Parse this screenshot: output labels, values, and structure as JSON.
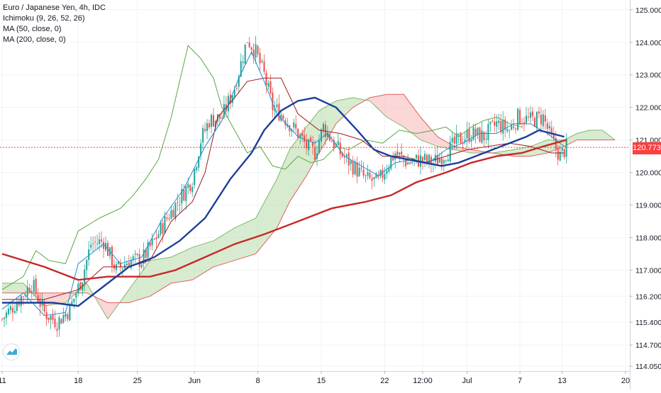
{
  "legend": {
    "title": "Euro / Japanese Yen, 4h, IDC",
    "ichimoku": "Ichimoku (9, 26, 52, 26)",
    "ma50": "MA (50, close, 0)",
    "ma200": "MA (200, close, 0)"
  },
  "colors": {
    "candle_up": "#26a69a",
    "candle_down": "#ef5350",
    "ma50": "#1a3f9a",
    "ma200": "#c62828",
    "conversion": "#1c8fd6",
    "base": "#9e1c1c",
    "lagging": "#58a842",
    "span_a": "#7fb96e",
    "span_b": "#e06060",
    "cloud_bull": "#b7dba8",
    "cloud_bear": "#f7b4b4",
    "last_price_line": "#ff3e3e"
  },
  "chart_data": {
    "type": "candlestick",
    "symbol": "Euro / Japanese Yen",
    "timeframe": "4h",
    "source": "IDC",
    "last_price": "120.773",
    "y_range": [
      113.9,
      125.3
    ],
    "y_ticks": [
      "125.000",
      "124.000",
      "123.000",
      "122.000",
      "121.000",
      "120.000",
      "119.000",
      "118.000",
      "117.000",
      "116.200",
      "115.400",
      "114.700",
      "114.050"
    ],
    "x_labels": [
      "11",
      "18",
      "25",
      "Jun",
      "8",
      "15",
      "22",
      "12:00",
      "Jul",
      "7",
      "13",
      "20"
    ],
    "x_label_index": [
      0,
      36,
      64,
      91,
      121,
      151,
      181,
      199,
      220,
      245,
      265,
      295
    ],
    "n_slots": 298,
    "candle_count": 268,
    "close_anchors": [
      [
        0,
        115.5
      ],
      [
        8,
        116.1
      ],
      [
        14,
        116.6
      ],
      [
        20,
        115.7
      ],
      [
        26,
        115.4
      ],
      [
        32,
        115.8
      ],
      [
        38,
        116.8
      ],
      [
        42,
        117.8
      ],
      [
        48,
        117.9
      ],
      [
        54,
        117.0
      ],
      [
        60,
        117.3
      ],
      [
        66,
        117.3
      ],
      [
        72,
        117.9
      ],
      [
        78,
        118.6
      ],
      [
        84,
        119.2
      ],
      [
        90,
        119.8
      ],
      [
        94,
        121.0
      ],
      [
        98,
        121.6
      ],
      [
        104,
        121.7
      ],
      [
        110,
        122.6
      ],
      [
        116,
        124.1
      ],
      [
        120,
        123.7
      ],
      [
        124,
        123.0
      ],
      [
        128,
        122.0
      ],
      [
        132,
        121.8
      ],
      [
        136,
        121.5
      ],
      [
        140,
        121.2
      ],
      [
        144,
        120.8
      ],
      [
        148,
        120.6
      ],
      [
        152,
        121.4
      ],
      [
        156,
        121.0
      ],
      [
        160,
        120.6
      ],
      [
        166,
        120.2
      ],
      [
        172,
        119.8
      ],
      [
        178,
        119.7
      ],
      [
        182,
        120.2
      ],
      [
        186,
        120.6
      ],
      [
        192,
        120.3
      ],
      [
        198,
        120.4
      ],
      [
        204,
        120.3
      ],
      [
        210,
        120.6
      ],
      [
        216,
        121.0
      ],
      [
        222,
        121.2
      ],
      [
        228,
        121.1
      ],
      [
        234,
        121.5
      ],
      [
        240,
        121.3
      ],
      [
        244,
        121.7
      ],
      [
        250,
        121.6
      ],
      [
        256,
        121.7
      ],
      [
        260,
        121.0
      ],
      [
        264,
        120.5
      ],
      [
        267,
        120.77
      ]
    ],
    "ma50": [
      [
        0,
        116.0
      ],
      [
        12,
        116.0
      ],
      [
        24,
        116.0
      ],
      [
        36,
        115.9
      ],
      [
        48,
        116.5
      ],
      [
        60,
        117.1
      ],
      [
        72,
        117.4
      ],
      [
        84,
        117.9
      ],
      [
        96,
        118.6
      ],
      [
        108,
        119.8
      ],
      [
        118,
        120.6
      ],
      [
        124,
        121.3
      ],
      [
        132,
        121.9
      ],
      [
        140,
        122.2
      ],
      [
        148,
        122.3
      ],
      [
        158,
        122.0
      ],
      [
        168,
        121.3
      ],
      [
        176,
        120.7
      ],
      [
        184,
        120.5
      ],
      [
        192,
        120.4
      ],
      [
        200,
        120.3
      ],
      [
        208,
        120.2
      ],
      [
        216,
        120.3
      ],
      [
        224,
        120.5
      ],
      [
        232,
        120.7
      ],
      [
        240,
        120.9
      ],
      [
        248,
        121.1
      ],
      [
        254,
        121.3
      ],
      [
        260,
        121.2
      ],
      [
        266,
        121.1
      ]
    ],
    "ma200": [
      [
        0,
        117.5
      ],
      [
        20,
        117.1
      ],
      [
        36,
        116.7
      ],
      [
        50,
        116.8
      ],
      [
        60,
        116.8
      ],
      [
        70,
        116.8
      ],
      [
        82,
        117.0
      ],
      [
        96,
        117.4
      ],
      [
        110,
        117.8
      ],
      [
        124,
        118.1
      ],
      [
        140,
        118.5
      ],
      [
        156,
        118.9
      ],
      [
        172,
        119.1
      ],
      [
        184,
        119.3
      ],
      [
        196,
        119.7
      ],
      [
        210,
        120.0
      ],
      [
        222,
        120.3
      ],
      [
        234,
        120.5
      ],
      [
        246,
        120.6
      ],
      [
        256,
        120.8
      ],
      [
        267,
        121.0
      ]
    ],
    "ichimoku": {
      "conversion": [
        [
          0,
          115.8
        ],
        [
          10,
          116.3
        ],
        [
          20,
          115.6
        ],
        [
          30,
          115.7
        ],
        [
          36,
          117.2
        ],
        [
          48,
          117.8
        ],
        [
          56,
          117.2
        ],
        [
          66,
          117.4
        ],
        [
          76,
          118.6
        ],
        [
          86,
          119.5
        ],
        [
          96,
          120.8
        ],
        [
          104,
          121.6
        ],
        [
          112,
          122.9
        ],
        [
          118,
          123.7
        ],
        [
          124,
          122.8
        ],
        [
          130,
          121.8
        ],
        [
          140,
          121.1
        ],
        [
          148,
          120.9
        ],
        [
          154,
          121.2
        ],
        [
          162,
          120.5
        ],
        [
          170,
          120.2
        ],
        [
          178,
          119.9
        ],
        [
          186,
          120.3
        ],
        [
          194,
          120.4
        ],
        [
          202,
          120.3
        ],
        [
          210,
          120.7
        ],
        [
          218,
          120.9
        ],
        [
          226,
          121.2
        ],
        [
          234,
          121.2
        ],
        [
          242,
          121.5
        ],
        [
          250,
          121.5
        ],
        [
          258,
          121.2
        ],
        [
          266,
          120.8
        ]
      ],
      "base": [
        [
          0,
          116.1
        ],
        [
          20,
          116.1
        ],
        [
          36,
          116.4
        ],
        [
          48,
          117.1
        ],
        [
          60,
          117.1
        ],
        [
          70,
          117.3
        ],
        [
          80,
          118.5
        ],
        [
          90,
          119.1
        ],
        [
          96,
          120.0
        ],
        [
          102,
          121.7
        ],
        [
          110,
          122.3
        ],
        [
          116,
          122.8
        ],
        [
          124,
          122.9
        ],
        [
          132,
          122.9
        ],
        [
          140,
          121.8
        ],
        [
          150,
          121.3
        ],
        [
          160,
          121.2
        ],
        [
          170,
          121.0
        ],
        [
          180,
          120.5
        ],
        [
          190,
          120.5
        ],
        [
          200,
          120.3
        ],
        [
          210,
          120.5
        ],
        [
          220,
          120.7
        ],
        [
          230,
          120.8
        ],
        [
          240,
          120.9
        ],
        [
          250,
          120.8
        ],
        [
          260,
          120.6
        ],
        [
          266,
          120.6
        ]
      ],
      "lagging": [
        [
          0,
          116.4
        ],
        [
          10,
          116.8
        ],
        [
          16,
          117.6
        ],
        [
          22,
          117.3
        ],
        [
          30,
          117.2
        ],
        [
          36,
          118.2
        ],
        [
          46,
          118.6
        ],
        [
          56,
          118.9
        ],
        [
          62,
          119.3
        ],
        [
          68,
          119.8
        ],
        [
          74,
          120.4
        ],
        [
          80,
          121.7
        ],
        [
          88,
          123.9
        ],
        [
          94,
          123.5
        ],
        [
          100,
          122.9
        ],
        [
          104,
          122.0
        ],
        [
          110,
          121.3
        ],
        [
          116,
          120.6
        ],
        [
          122,
          120.8
        ],
        [
          128,
          120.2
        ],
        [
          134,
          120.1
        ],
        [
          140,
          120.5
        ],
        [
          146,
          120.3
        ],
        [
          152,
          120.4
        ],
        [
          158,
          120.8
        ],
        [
          164,
          120.7
        ],
        [
          172,
          121.0
        ],
        [
          180,
          120.9
        ],
        [
          188,
          121.3
        ],
        [
          196,
          121.2
        ],
        [
          204,
          121.3
        ],
        [
          210,
          121.4
        ],
        [
          216,
          121.1
        ],
        [
          222,
          121.4
        ],
        [
          228,
          121.6
        ],
        [
          234,
          121.7
        ],
        [
          240,
          121.5
        ],
        [
          246,
          121.4
        ]
      ],
      "span_a": [
        [
          0,
          116.6
        ],
        [
          10,
          116.6
        ],
        [
          20,
          115.9
        ],
        [
          30,
          116.0
        ],
        [
          40,
          116.6
        ],
        [
          50,
          115.5
        ],
        [
          60,
          116.4
        ],
        [
          70,
          117.3
        ],
        [
          80,
          117.4
        ],
        [
          90,
          117.7
        ],
        [
          100,
          117.9
        ],
        [
          110,
          118.3
        ],
        [
          120,
          118.6
        ],
        [
          130,
          119.8
        ],
        [
          136,
          120.7
        ],
        [
          144,
          121.4
        ],
        [
          150,
          121.9
        ],
        [
          158,
          122.2
        ],
        [
          166,
          122.3
        ],
        [
          174,
          122.2
        ],
        [
          182,
          121.7
        ],
        [
          190,
          121.4
        ],
        [
          198,
          121.0
        ],
        [
          206,
          120.8
        ],
        [
          214,
          120.7
        ],
        [
          222,
          120.6
        ],
        [
          232,
          120.6
        ],
        [
          242,
          120.7
        ],
        [
          250,
          120.8
        ],
        [
          258,
          121.0
        ],
        [
          266,
          121.0
        ],
        [
          272,
          121.2
        ],
        [
          278,
          121.3
        ],
        [
          284,
          121.3
        ],
        [
          290,
          121.0
        ]
      ],
      "span_b": [
        [
          0,
          116.3
        ],
        [
          10,
          116.3
        ],
        [
          20,
          116.3
        ],
        [
          30,
          116.3
        ],
        [
          40,
          116.3
        ],
        [
          50,
          116.0
        ],
        [
          60,
          116.0
        ],
        [
          70,
          116.2
        ],
        [
          80,
          116.6
        ],
        [
          90,
          116.7
        ],
        [
          100,
          117.1
        ],
        [
          110,
          117.3
        ],
        [
          120,
          117.5
        ],
        [
          130,
          118.3
        ],
        [
          136,
          119.1
        ],
        [
          144,
          119.9
        ],
        [
          150,
          120.6
        ],
        [
          158,
          121.5
        ],
        [
          166,
          122.0
        ],
        [
          174,
          122.3
        ],
        [
          182,
          122.4
        ],
        [
          190,
          122.4
        ],
        [
          198,
          121.7
        ],
        [
          206,
          121.1
        ],
        [
          214,
          120.8
        ],
        [
          222,
          120.7
        ],
        [
          232,
          120.6
        ],
        [
          242,
          120.5
        ],
        [
          250,
          120.5
        ],
        [
          258,
          120.6
        ],
        [
          266,
          120.8
        ],
        [
          272,
          121.0
        ],
        [
          280,
          121.0
        ],
        [
          290,
          121.0
        ]
      ]
    }
  }
}
